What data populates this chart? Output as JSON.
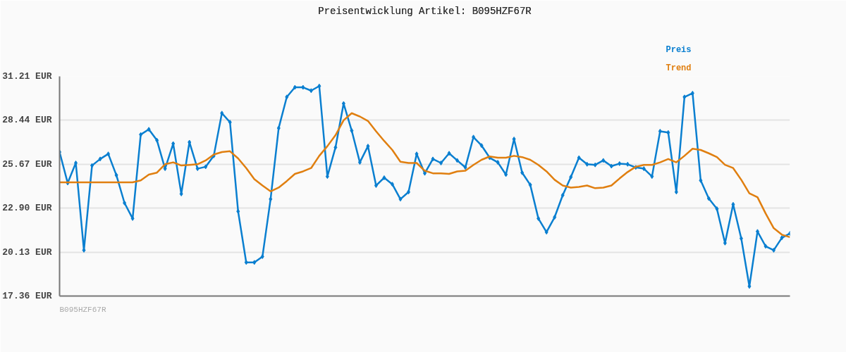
{
  "chart_data": {
    "type": "line",
    "title": "Preisentwicklung Artikel: B095HZF67R",
    "categories": [
      null,
      null,
      null,
      null,
      null,
      null,
      null,
      null,
      null,
      null,
      null,
      null,
      null,
      null,
      null,
      null,
      null,
      null,
      null,
      null,
      null,
      null,
      null,
      null,
      null,
      null,
      null,
      null,
      null,
      null,
      null,
      null,
      null,
      null,
      null,
      null,
      null,
      null,
      null,
      null,
      null,
      null,
      null,
      null,
      null,
      null,
      null,
      null,
      null,
      null,
      null,
      null,
      null,
      null,
      null,
      null,
      null,
      null,
      null,
      null,
      null,
      null,
      null,
      null,
      null,
      null,
      null,
      null,
      null,
      null,
      null,
      null,
      null,
      null,
      null,
      null,
      null,
      null,
      null,
      null,
      null,
      null,
      null,
      null,
      null,
      null,
      null,
      null,
      null,
      null,
      null
    ],
    "series": [
      {
        "name": "Preis",
        "color": "#0a7fd0",
        "marker": "diamond",
        "values": [
          26.44,
          24.49,
          25.75,
          20.25,
          25.59,
          26.0,
          26.32,
          24.98,
          23.23,
          22.25,
          27.54,
          27.87,
          27.18,
          25.39,
          26.97,
          23.8,
          27.06,
          25.39,
          25.51,
          26.2,
          28.89,
          28.32,
          22.7,
          19.48,
          19.48,
          19.85,
          23.47,
          27.95,
          29.91,
          30.52,
          30.52,
          30.31,
          30.6,
          24.9,
          26.73,
          29.5,
          27.79,
          25.79,
          26.81,
          24.33,
          24.82,
          24.41,
          23.47,
          23.92,
          26.32,
          25.1,
          26.0,
          25.75,
          26.36,
          25.91,
          25.47,
          27.38,
          26.85,
          26.08,
          25.79,
          25.02,
          27.26,
          25.14,
          24.37,
          22.25,
          21.39,
          22.33,
          23.72,
          24.86,
          26.08,
          25.67,
          25.63,
          25.91,
          25.55,
          25.71,
          25.67,
          25.47,
          25.39,
          24.9,
          27.75,
          27.67,
          23.92,
          29.91,
          30.15,
          24.65,
          23.51,
          22.86,
          20.7,
          23.14,
          20.99,
          17.97,
          21.43,
          20.5,
          20.25,
          21.03,
          21.31
        ]
      },
      {
        "name": "Trend",
        "color": "#e07f10",
        "marker": "none",
        "values": [
          24.53,
          24.53,
          24.53,
          24.53,
          24.53,
          24.53,
          24.53,
          24.53,
          24.53,
          24.53,
          24.65,
          25.02,
          25.14,
          25.67,
          25.79,
          25.59,
          25.63,
          25.67,
          25.91,
          26.28,
          26.44,
          26.49,
          26.04,
          25.43,
          24.73,
          24.33,
          23.96,
          24.2,
          24.61,
          25.06,
          25.22,
          25.43,
          26.2,
          26.81,
          27.5,
          28.44,
          28.89,
          28.68,
          28.4,
          27.75,
          27.14,
          26.57,
          25.83,
          25.75,
          25.75,
          25.26,
          25.1,
          25.1,
          25.06,
          25.22,
          25.26,
          25.63,
          25.95,
          26.16,
          26.08,
          26.08,
          26.2,
          26.12,
          25.95,
          25.63,
          25.22,
          24.69,
          24.33,
          24.2,
          24.24,
          24.33,
          24.16,
          24.2,
          24.33,
          24.77,
          25.18,
          25.51,
          25.63,
          25.63,
          25.79,
          26.0,
          25.79,
          26.2,
          26.65,
          26.57,
          26.36,
          26.12,
          25.63,
          25.43,
          24.69,
          23.84,
          23.59,
          22.57,
          21.64,
          21.23,
          21.07
        ]
      }
    ],
    "ylim": [
      17.36,
      31.21
    ],
    "yticks": [
      {
        "value": 17.36,
        "label": "17.36 EUR"
      },
      {
        "value": 20.13,
        "label": "20.13 EUR"
      },
      {
        "value": 22.9,
        "label": "22.90 EUR"
      },
      {
        "value": 25.67,
        "label": "25.67 EUR"
      },
      {
        "value": 28.44,
        "label": "28.44 EUR"
      },
      {
        "value": 31.21,
        "label": "31.21 EUR"
      }
    ],
    "grid": "y",
    "line_style": "solid",
    "annotations": [
      "B095HZF67R"
    ]
  }
}
